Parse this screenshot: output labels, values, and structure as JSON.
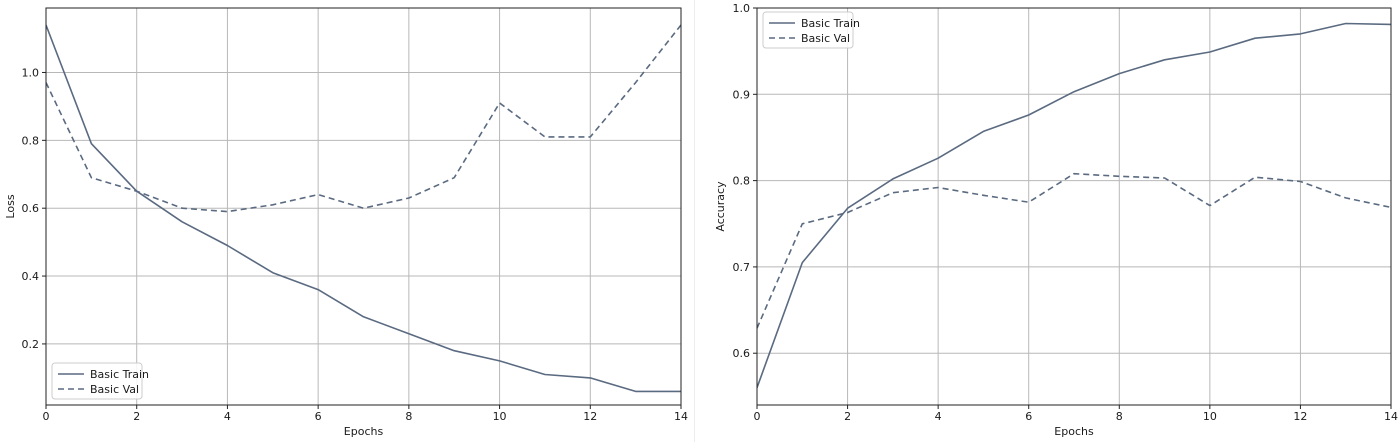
{
  "chart_data": [
    {
      "type": "line",
      "title": "",
      "xlabel": "Epochs",
      "ylabel": "Loss",
      "xlim": [
        0,
        14
      ],
      "ylim": [
        0.02,
        1.19
      ],
      "xticks": [
        0,
        2,
        4,
        6,
        8,
        10,
        12,
        14
      ],
      "yticks": [
        0.2,
        0.4,
        0.6,
        0.8,
        1.0
      ],
      "grid": true,
      "legend_position": "lower-left",
      "line_color": "#5a6a80",
      "x": [
        0,
        1,
        2,
        3,
        4,
        5,
        6,
        7,
        8,
        9,
        10,
        11,
        12,
        13,
        14
      ],
      "series": [
        {
          "name": "Basic Train",
          "style": "solid",
          "values": [
            1.14,
            0.79,
            0.65,
            0.56,
            0.49,
            0.41,
            0.36,
            0.28,
            0.23,
            0.18,
            0.15,
            0.11,
            0.1,
            0.06,
            0.06
          ]
        },
        {
          "name": "Basic Val",
          "style": "dashed",
          "values": [
            0.97,
            0.69,
            0.65,
            0.6,
            0.59,
            0.61,
            0.64,
            0.6,
            0.63,
            0.69,
            0.91,
            0.81,
            0.81,
            0.97,
            1.14
          ]
        }
      ]
    },
    {
      "type": "line",
      "title": "",
      "xlabel": "Epochs",
      "ylabel": "Accuracy",
      "xlim": [
        0,
        14
      ],
      "ylim": [
        0.54,
        1.0
      ],
      "xticks": [
        0,
        2,
        4,
        6,
        8,
        10,
        12,
        14
      ],
      "yticks": [
        0.6,
        0.7,
        0.8,
        0.9,
        1.0
      ],
      "grid": true,
      "legend_position": "upper-left",
      "line_color": "#5a6a80",
      "x": [
        0,
        1,
        2,
        3,
        4,
        5,
        6,
        7,
        8,
        9,
        10,
        11,
        12,
        13,
        14
      ],
      "series": [
        {
          "name": "Basic Train",
          "style": "solid",
          "values": [
            0.56,
            0.705,
            0.768,
            0.802,
            0.826,
            0.857,
            0.876,
            0.903,
            0.924,
            0.94,
            0.949,
            0.965,
            0.97,
            0.982,
            0.981
          ]
        },
        {
          "name": "Basic Val",
          "style": "dashed",
          "values": [
            0.629,
            0.75,
            0.763,
            0.786,
            0.792,
            0.783,
            0.775,
            0.808,
            0.805,
            0.803,
            0.771,
            0.804,
            0.799,
            0.78,
            0.769
          ]
        }
      ]
    }
  ]
}
